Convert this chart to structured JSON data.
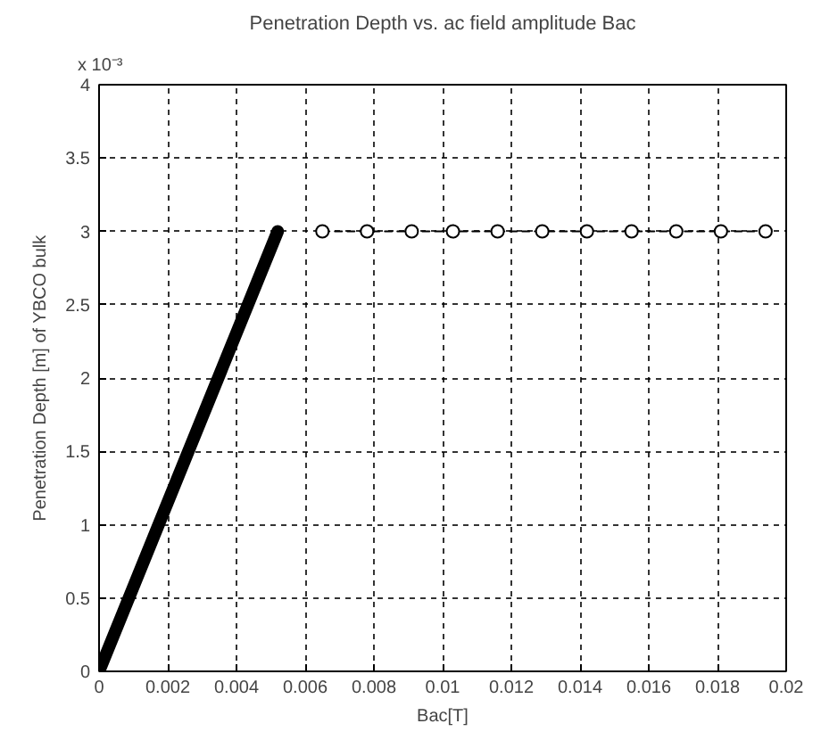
{
  "chart_data": {
    "type": "line",
    "title": "Penetration Depth vs. ac field amplitude Bac",
    "xlabel": "Bac[T]",
    "ylabel": "Penetration Depth [m] of YBCO bulk",
    "annotations": [
      "x 10⁻³"
    ],
    "series": [
      {
        "color": "#000000",
        "x": [
          0,
          0.0052
        ],
        "values": [
          0,
          3
        ],
        "line_style": "solid",
        "marker": "none"
      },
      {
        "color": "#000000",
        "x": [
          0.0065,
          0.0078,
          0.0091,
          0.0103,
          0.0116,
          0.0129,
          0.0142,
          0.0155,
          0.0168,
          0.0181,
          0.0194
        ],
        "values": [
          3,
          3,
          3,
          3,
          3,
          3,
          3,
          3,
          3,
          3,
          3
        ],
        "line_style": "dashed",
        "marker": "circle"
      }
    ],
    "xlim": [
      0,
      0.02
    ],
    "ylim": [
      0,
      4
    ],
    "xticks": [
      0,
      0.002,
      0.004,
      0.006,
      0.008,
      {
        "value": 0.01,
        "label": "0.01"
      },
      0.012,
      0.014,
      0.016,
      0.018,
      {
        "value": 0.02,
        "label": "0.02"
      }
    ],
    "yticks": [
      0,
      0.5,
      1,
      1.5,
      2,
      2.5,
      3,
      3.5,
      4
    ],
    "grid": true
  }
}
